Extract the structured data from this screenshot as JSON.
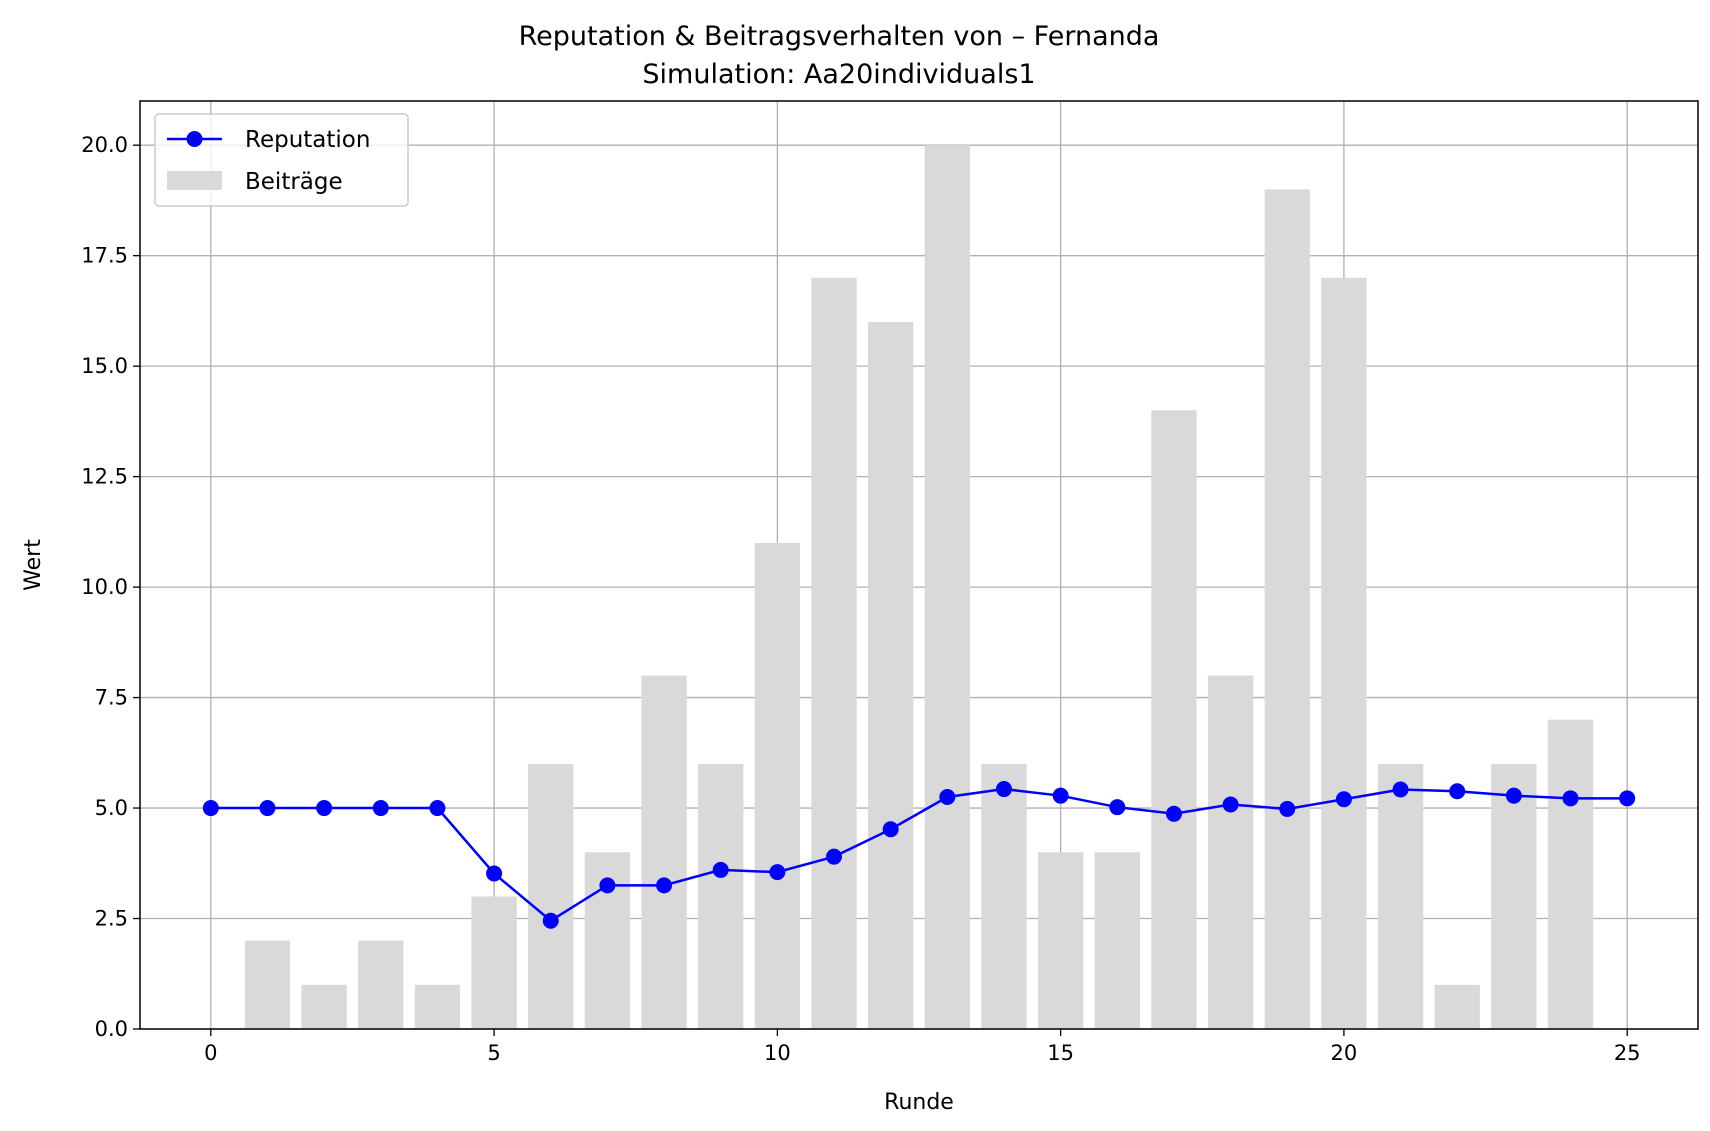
{
  "chart_data": {
    "type": "bar",
    "title": "Reputation & Beitragsverhalten von – Fernanda",
    "subtitle": "Simulation: Aa20individuals1",
    "xlabel": "Runde",
    "ylabel": "Wert",
    "xlim": [
      -1.25,
      26.25
    ],
    "ylim": [
      0,
      21
    ],
    "xticks": [
      0,
      5,
      10,
      15,
      20,
      25
    ],
    "yticks": [
      0.0,
      2.5,
      5.0,
      7.5,
      10.0,
      12.5,
      15.0,
      17.5,
      20.0
    ],
    "grid": true,
    "legend_position": "top-left",
    "series": [
      {
        "name": "Reputation",
        "type": "line",
        "color": "#0000ff",
        "marker": "circle",
        "x": [
          0,
          1,
          2,
          3,
          4,
          5,
          6,
          7,
          8,
          9,
          10,
          11,
          12,
          13,
          14,
          15,
          16,
          17,
          18,
          19,
          20,
          21,
          22,
          23,
          24,
          25
        ],
        "values": [
          5.0,
          5.0,
          5.0,
          5.0,
          5.0,
          3.52,
          2.45,
          3.25,
          3.25,
          3.6,
          3.55,
          3.9,
          4.52,
          5.25,
          5.43,
          5.28,
          5.02,
          4.87,
          5.08,
          4.98,
          5.2,
          5.42,
          5.38,
          5.28,
          5.22,
          5.22
        ]
      },
      {
        "name": "Beiträge",
        "type": "bar",
        "color": "#d9d9d9",
        "x": [
          1,
          2,
          3,
          4,
          5,
          6,
          7,
          8,
          9,
          10,
          11,
          12,
          13,
          14,
          15,
          16,
          17,
          18,
          19,
          20,
          21,
          22,
          23,
          24
        ],
        "values": [
          2,
          1,
          2,
          1,
          3,
          6,
          4,
          8,
          6,
          11,
          17,
          16,
          20,
          6,
          4,
          4,
          14,
          8,
          19,
          17,
          6,
          1,
          6,
          7
        ]
      }
    ]
  }
}
